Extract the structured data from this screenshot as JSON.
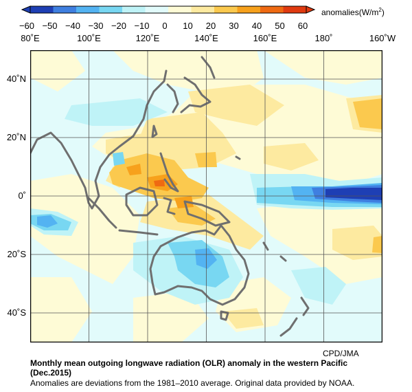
{
  "colorbar": {
    "ticks": [
      "−60",
      "−50",
      "−40",
      "−30",
      "−20",
      "−10",
      "0",
      "10",
      "20",
      "30",
      "40",
      "50",
      "60"
    ],
    "colors": [
      "#1e3fb4",
      "#3f7fe0",
      "#53b3f2",
      "#78d7f2",
      "#bff3f7",
      "#e2fbfb",
      "#fefbd6",
      "#fdeaa0",
      "#fbc94e",
      "#f7a11c",
      "#ef6a12",
      "#e03a10"
    ],
    "units_prefix": "anomalies(W/m",
    "units_sup": "2",
    "units_suffix": ")"
  },
  "map": {
    "lon_labels": [
      "80˚E",
      "100˚E",
      "120˚E",
      "140˚E",
      "160˚E",
      "180˚",
      "160˚W"
    ],
    "lat_labels": [
      "40˚N",
      "20˚N",
      "0˚",
      "20˚S",
      "40˚S"
    ],
    "coastline_color": "#6f6f6f"
  },
  "credit": "CPD/JMA",
  "caption": {
    "title": "Monthly mean outgoing longwave radiation (OLR) anomaly in the western Pacific (Dec.2015)",
    "note": "Anomalies are deviations from the 1981–2010 average. Original data provided by NOAA."
  }
}
